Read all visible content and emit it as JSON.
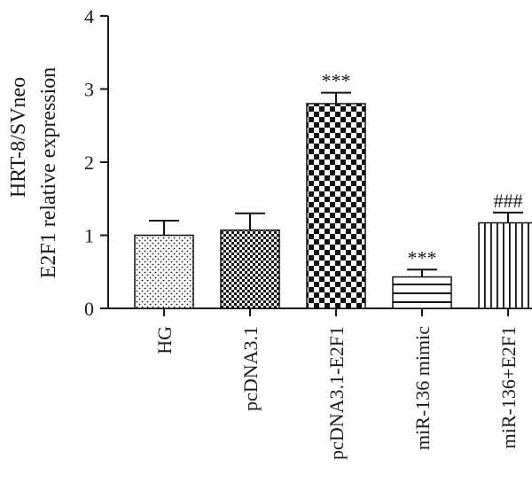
{
  "chart_data": {
    "type": "bar",
    "categories": [
      "HG",
      "pcDNA3.1",
      "pcDNA3.1-E2F1",
      "miR-136 mimic",
      "miR-136+E2F1"
    ],
    "values": [
      1.0,
      1.07,
      2.8,
      0.43,
      1.17
    ],
    "errors": [
      0.2,
      0.23,
      0.15,
      0.1,
      0.14
    ],
    "significance": [
      "",
      "",
      "***",
      "***",
      "###"
    ],
    "patterns": [
      "dots",
      "fine-checker",
      "large-checker",
      "horizontal-lines",
      "vertical-lines"
    ],
    "ylabel_line1": "HRT-8/SVneo",
    "ylabel_line2": "E2F1 relative expression",
    "xlabel": "",
    "title": "",
    "ylim": [
      0,
      4
    ],
    "yticks": [
      0,
      1,
      2,
      3,
      4
    ],
    "grid": false,
    "bar_color": "#111111"
  }
}
